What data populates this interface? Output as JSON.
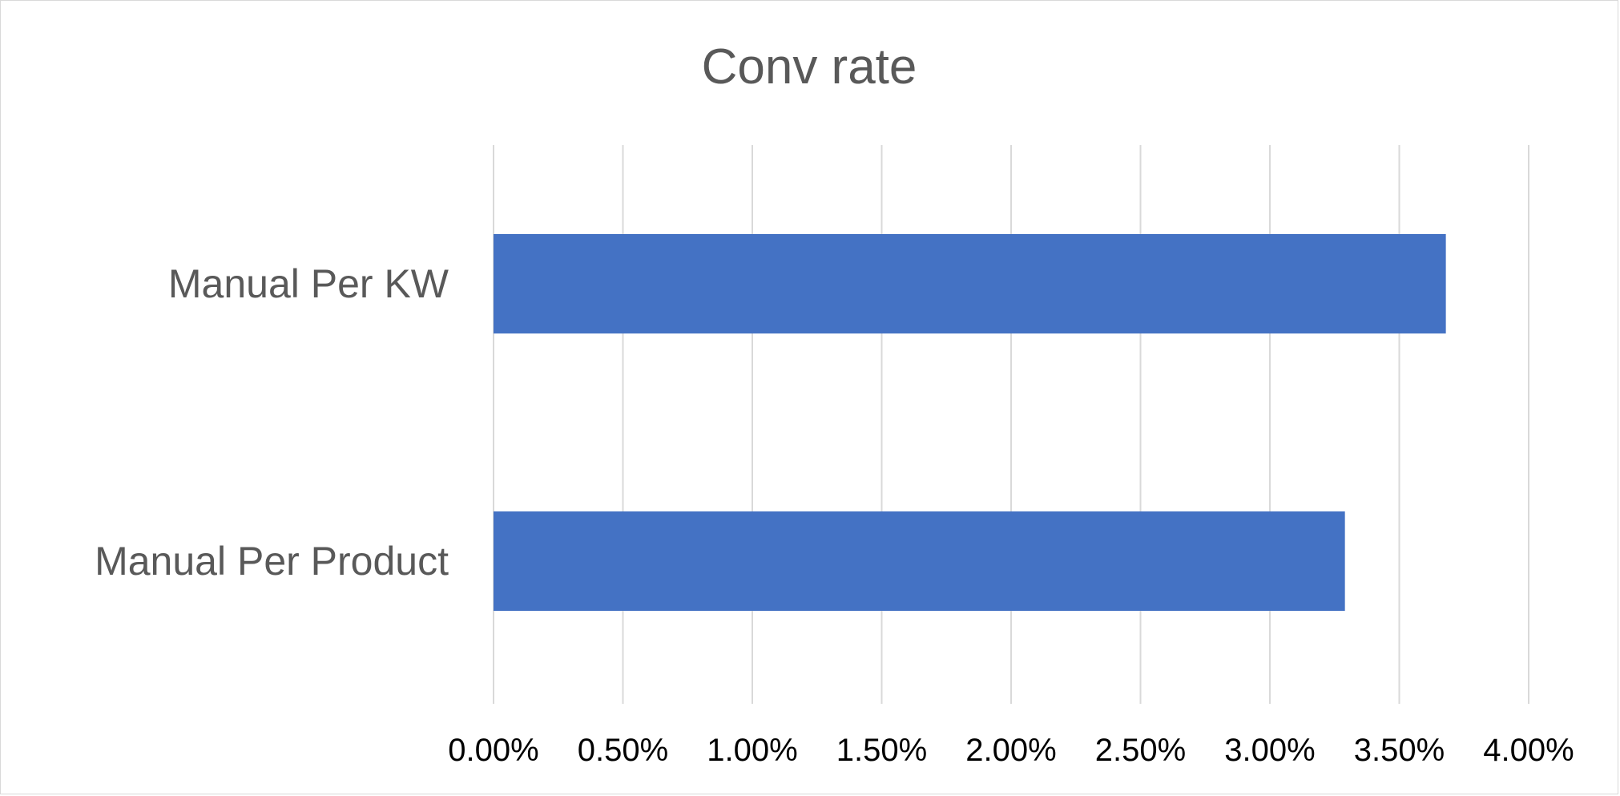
{
  "chart_data": {
    "type": "bar",
    "orientation": "horizontal",
    "title": "Conv rate",
    "categories": [
      "Manual Per KW",
      "Manual Per Product"
    ],
    "values": [
      0.0368,
      0.0329
    ],
    "xlim": [
      0,
      0.04
    ],
    "x_ticks": [
      0,
      0.005,
      0.01,
      0.015,
      0.02,
      0.025,
      0.03,
      0.035,
      0.04
    ],
    "x_tick_labels": [
      "0.00%",
      "0.50%",
      "1.00%",
      "1.50%",
      "2.00%",
      "2.50%",
      "3.00%",
      "3.50%",
      "4.00%"
    ],
    "xlabel": "",
    "ylabel": "",
    "grid": "vertical",
    "legend": "none",
    "bar_color": "#4472C4",
    "grid_color": "#d9d9d9"
  }
}
